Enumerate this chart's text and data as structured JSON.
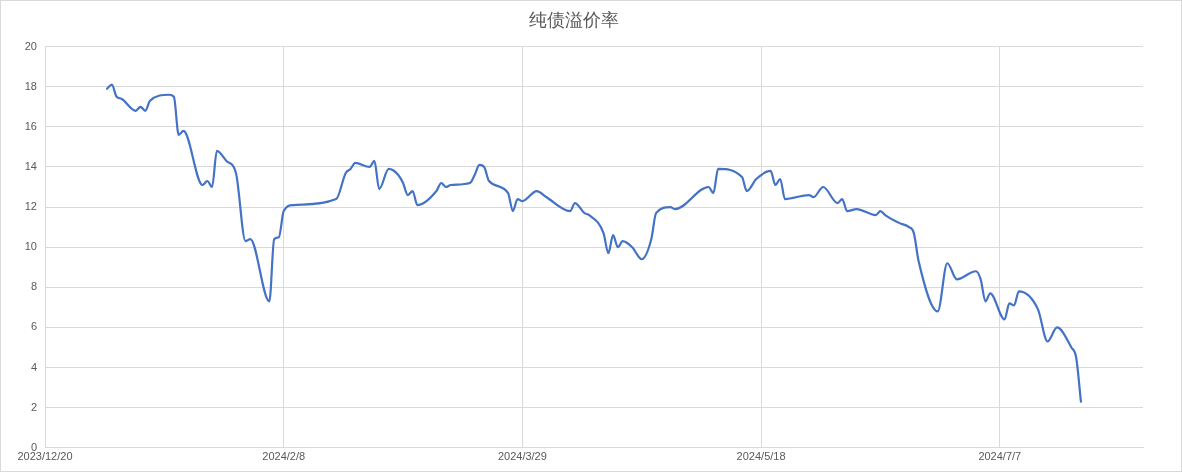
{
  "chart_data": {
    "type": "line",
    "title": "纯债溢价率",
    "x": [
      "2024-01-02",
      "2024-01-03",
      "2024-01-04",
      "2024-01-05",
      "2024-01-08",
      "2024-01-09",
      "2024-01-10",
      "2024-01-11",
      "2024-01-15",
      "2024-01-16",
      "2024-01-17",
      "2024-01-18",
      "2024-01-22",
      "2024-01-23",
      "2024-01-24",
      "2024-01-25",
      "2024-01-27",
      "2024-01-29",
      "2024-01-31",
      "2024-02-01",
      "2024-02-05",
      "2024-02-06",
      "2024-02-07",
      "2024-02-08",
      "2024-02-10",
      "2024-02-19",
      "2024-02-21",
      "2024-02-22",
      "2024-02-23",
      "2024-02-26",
      "2024-02-27",
      "2024-02-28",
      "2024-03-01",
      "2024-03-03",
      "2024-03-04",
      "2024-03-05",
      "2024-03-06",
      "2024-03-07",
      "2024-03-11",
      "2024-03-12",
      "2024-03-13",
      "2024-03-14",
      "2024-03-18",
      "2024-03-19",
      "2024-03-20",
      "2024-03-21",
      "2024-03-22",
      "2024-03-26",
      "2024-03-27",
      "2024-03-28",
      "2024-03-29",
      "2024-04-01",
      "2024-04-03",
      "2024-04-08",
      "2024-04-09",
      "2024-04-11",
      "2024-04-12",
      "2024-04-15",
      "2024-04-16",
      "2024-04-17",
      "2024-04-18",
      "2024-04-19",
      "2024-04-21",
      "2024-04-23",
      "2024-04-25",
      "2024-04-26",
      "2024-04-29",
      "2024-04-30",
      "2024-05-07",
      "2024-05-08",
      "2024-05-09",
      "2024-05-14",
      "2024-05-15",
      "2024-05-17",
      "2024-05-20",
      "2024-05-21",
      "2024-05-22",
      "2024-05-23",
      "2024-05-28",
      "2024-05-29",
      "2024-05-31",
      "2024-06-03",
      "2024-06-04",
      "2024-06-05",
      "2024-06-07",
      "2024-06-11",
      "2024-06-12",
      "2024-06-13",
      "2024-06-16",
      "2024-06-18",
      "2024-06-19",
      "2024-06-20",
      "2024-06-24",
      "2024-06-26",
      "2024-06-28",
      "2024-07-02",
      "2024-07-03",
      "2024-07-04",
      "2024-07-05",
      "2024-07-08",
      "2024-07-09",
      "2024-07-10",
      "2024-07-11",
      "2024-07-15",
      "2024-07-17",
      "2024-07-19",
      "2024-07-22",
      "2024-07-23",
      "2024-07-24"
    ],
    "series": [
      {
        "color": "#4472c4",
        "values": [
          17.9,
          18.1,
          17.5,
          17.4,
          16.8,
          17.0,
          16.8,
          17.3,
          17.6,
          17.5,
          15.6,
          15.8,
          13.1,
          13.3,
          13.0,
          14.8,
          14.3,
          13.7,
          10.3,
          10.4,
          7.3,
          10.4,
          10.5,
          11.8,
          12.1,
          12.4,
          13.7,
          13.9,
          14.2,
          14.0,
          14.3,
          12.9,
          13.9,
          13.6,
          13.2,
          12.6,
          12.8,
          12.1,
          12.8,
          13.2,
          13.0,
          13.1,
          13.2,
          13.6,
          14.1,
          14.0,
          13.3,
          12.7,
          11.8,
          12.4,
          12.3,
          12.8,
          12.5,
          11.8,
          12.2,
          11.7,
          11.6,
          10.7,
          9.7,
          10.6,
          10.0,
          10.3,
          10.0,
          9.4,
          10.4,
          11.7,
          12.0,
          11.9,
          13.0,
          12.7,
          13.9,
          13.5,
          12.8,
          13.4,
          13.8,
          13.1,
          13.4,
          12.4,
          12.6,
          12.5,
          13.0,
          12.2,
          12.4,
          11.8,
          11.9,
          11.6,
          11.8,
          11.6,
          11.2,
          11.0,
          10.7,
          9.3,
          6.8,
          9.2,
          8.4,
          8.8,
          8.4,
          7.3,
          7.7,
          6.4,
          7.2,
          7.1,
          7.8,
          6.9,
          5.3,
          6.0,
          5.0,
          4.5,
          2.3
        ]
      }
    ],
    "xlim": [
      "2023-12-20",
      "2024-08-06"
    ],
    "xticks": [
      {
        "value": "2023-12-20",
        "label": "2023/12/20"
      },
      {
        "value": "2024-02-08",
        "label": "2024/2/8"
      },
      {
        "value": "2024-03-29",
        "label": "2024/3/29"
      },
      {
        "value": "2024-05-18",
        "label": "2024/5/18"
      },
      {
        "value": "2024-07-07",
        "label": "2024/7/7"
      }
    ],
    "ylim": [
      0,
      20
    ],
    "yticks": [
      0,
      2,
      4,
      6,
      8,
      10,
      12,
      14,
      16,
      18,
      20
    ],
    "grid": true,
    "marker": "none",
    "line_style": "solid",
    "legend": false
  }
}
